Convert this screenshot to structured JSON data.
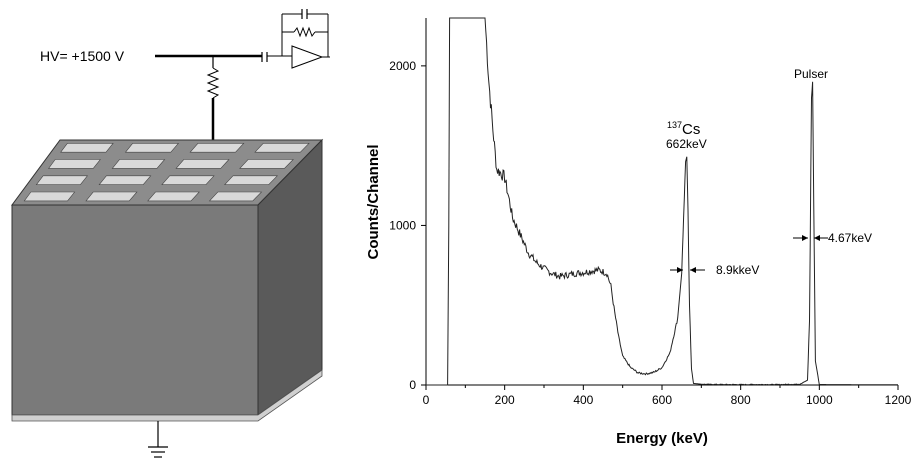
{
  "detector": {
    "hv_label": "HV= +1500 V",
    "pixel_rows": 4,
    "pixel_cols": 4,
    "colors": {
      "front_face": "#7a7a7a",
      "side_face": "#5a5a5a",
      "top_face": "#8c8c8c",
      "pixel": "#d9d9d9",
      "base": "#d0d0d0"
    }
  },
  "chart_data": {
    "type": "line",
    "xlabel": "Energy (keV)",
    "ylabel": "Counts/Channel",
    "xlim": [
      0,
      1200
    ],
    "ylim": [
      0,
      2300
    ],
    "xticks": [
      "0",
      "200",
      "400",
      "600",
      "800",
      "1000",
      "1200"
    ],
    "yticks": [
      "0",
      "1000",
      "2000"
    ],
    "grid": false,
    "series": [
      {
        "x": [
          0,
          55,
          58,
          60,
          150,
          160,
          170,
          180,
          190,
          200,
          210,
          220,
          240,
          260,
          280,
          300,
          320,
          340,
          360,
          380,
          400,
          420,
          440,
          460,
          470,
          480,
          490,
          500,
          520,
          540,
          560,
          580,
          600,
          620,
          640,
          650,
          655,
          660,
          663,
          666,
          670,
          675,
          680,
          700,
          750,
          800,
          850,
          900,
          950,
          970,
          975,
          980,
          983,
          986,
          990,
          1000,
          1100,
          1200
        ],
        "values": [
          0,
          0,
          1000,
          2300,
          2300,
          1900,
          1600,
          1350,
          1330,
          1300,
          1180,
          1050,
          940,
          830,
          770,
          730,
          700,
          680,
          690,
          700,
          705,
          715,
          720,
          700,
          620,
          450,
          300,
          180,
          110,
          75,
          70,
          80,
          110,
          200,
          420,
          700,
          1050,
          1400,
          1430,
          1100,
          500,
          100,
          10,
          5,
          3,
          3,
          3,
          3,
          5,
          30,
          400,
          1800,
          1900,
          1100,
          150,
          3,
          2,
          2
        ]
      }
    ],
    "annotations": [
      {
        "isotope_mass": "137",
        "isotope": "Cs",
        "energy_label": "662keV"
      },
      {
        "fwhm_label": "8.9kkeV",
        "x": 663
      },
      {
        "fwhm_label": "4.67keV",
        "x": 983
      },
      {
        "peak_label": "Pulser",
        "x": 983
      }
    ]
  }
}
